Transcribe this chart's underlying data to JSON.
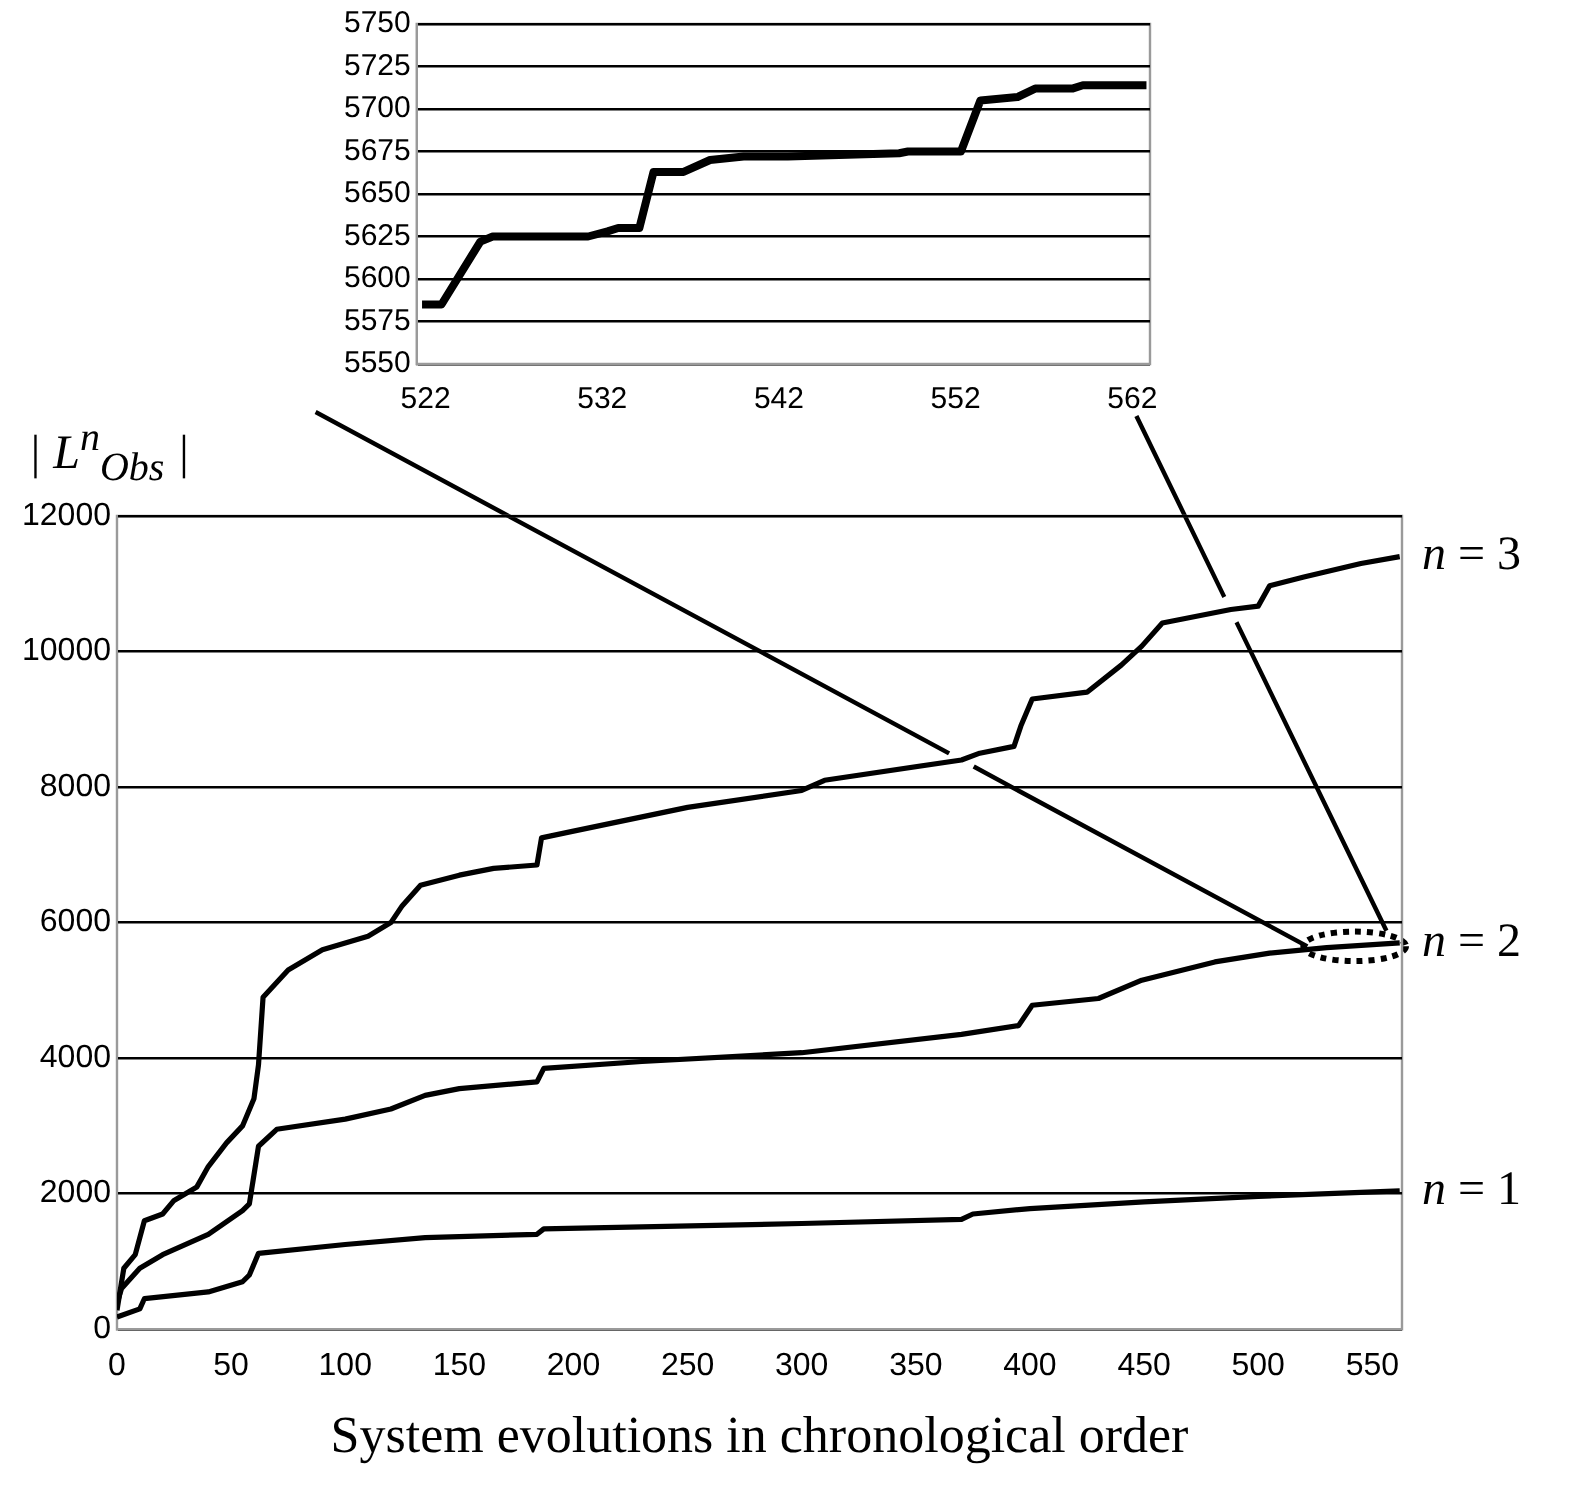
{
  "chart_data": [
    {
      "type": "line",
      "xlabel": "System evolutions in chronological order",
      "ylabel": "| L$^{n}$$_{Obs}$ |",
      "xlim": [
        0,
        563
      ],
      "xticks": [
        0,
        50,
        100,
        150,
        200,
        250,
        300,
        350,
        400,
        450,
        500,
        550
      ],
      "ylim": [
        0,
        12000
      ],
      "yticks": [
        0,
        2000,
        4000,
        6000,
        8000,
        10000,
        12000
      ],
      "grid": "y",
      "marker": "none",
      "line_style": "solid",
      "series": [
        {
          "name": "n = 1",
          "color": "#000000",
          "x": [
            0,
            10,
            12,
            40,
            55,
            58,
            62,
            100,
            135,
            184,
            187,
            300,
            370,
            375,
            400,
            450,
            500,
            562
          ],
          "values": [
            180,
            300,
            450,
            550,
            700,
            800,
            1120,
            1250,
            1350,
            1400,
            1480,
            1560,
            1620,
            1700,
            1780,
            1880,
            1960,
            2040
          ]
        },
        {
          "name": "n = 2",
          "color": "#000000",
          "x": [
            0,
            2,
            10,
            20,
            40,
            55,
            58,
            62,
            70,
            100,
            120,
            135,
            150,
            184,
            187,
            230,
            300,
            370,
            395,
            401,
            430,
            449,
            481,
            505,
            530,
            562
          ],
          "values": [
            380,
            600,
            900,
            1100,
            1400,
            1750,
            1850,
            2700,
            2950,
            3100,
            3250,
            3450,
            3550,
            3650,
            3850,
            3950,
            4080,
            4350,
            4480,
            4780,
            4880,
            5150,
            5420,
            5550,
            5630,
            5700
          ]
        },
        {
          "name": "n = 3",
          "color": "#000000",
          "x": [
            0,
            3,
            8,
            12,
            20,
            25,
            35,
            40,
            48,
            55,
            60,
            62,
            64,
            75,
            90,
            110,
            120,
            125,
            133,
            150,
            165,
            184,
            186,
            200,
            250,
            300,
            310,
            370,
            378,
            393,
            396,
            401,
            425,
            440,
            449,
            458,
            488,
            500,
            505,
            520,
            545,
            562
          ],
          "values": [
            280,
            900,
            1100,
            1600,
            1700,
            1900,
            2100,
            2400,
            2750,
            3000,
            3400,
            3900,
            4900,
            5300,
            5600,
            5800,
            6000,
            6250,
            6550,
            6700,
            6800,
            6850,
            7250,
            7350,
            7700,
            7950,
            8100,
            8400,
            8500,
            8600,
            8900,
            9300,
            9400,
            9800,
            10080,
            10420,
            10620,
            10670,
            10970,
            11100,
            11300,
            11400
          ]
        }
      ]
    },
    {
      "type": "line",
      "xlim": [
        521.5,
        563
      ],
      "xticks": [
        522,
        532,
        542,
        552,
        562
      ],
      "ylim": [
        5550,
        5750
      ],
      "yticks": [
        5550,
        5575,
        5600,
        5625,
        5650,
        5675,
        5700,
        5725,
        5750
      ],
      "grid": "y",
      "marker": "none",
      "line_style": "solid",
      "series": [
        {
          "color": "#000000",
          "x": [
            521.8,
            522.9,
            525.1,
            525.8,
            531.2,
            532.3,
            532.9,
            534.1,
            534.9,
            536.6,
            538.1,
            540,
            542.5,
            548.8,
            549.3,
            552.3,
            553.4,
            555.5,
            556.5,
            558.6,
            559.2,
            562.8
          ],
          "values": [
            5585,
            5585,
            5622,
            5625,
            5625,
            5628,
            5630,
            5630,
            5663,
            5663,
            5670,
            5672,
            5672,
            5674,
            5675,
            5675,
            5705,
            5707,
            5712,
            5712,
            5714,
            5714
          ]
        }
      ]
    }
  ]
}
